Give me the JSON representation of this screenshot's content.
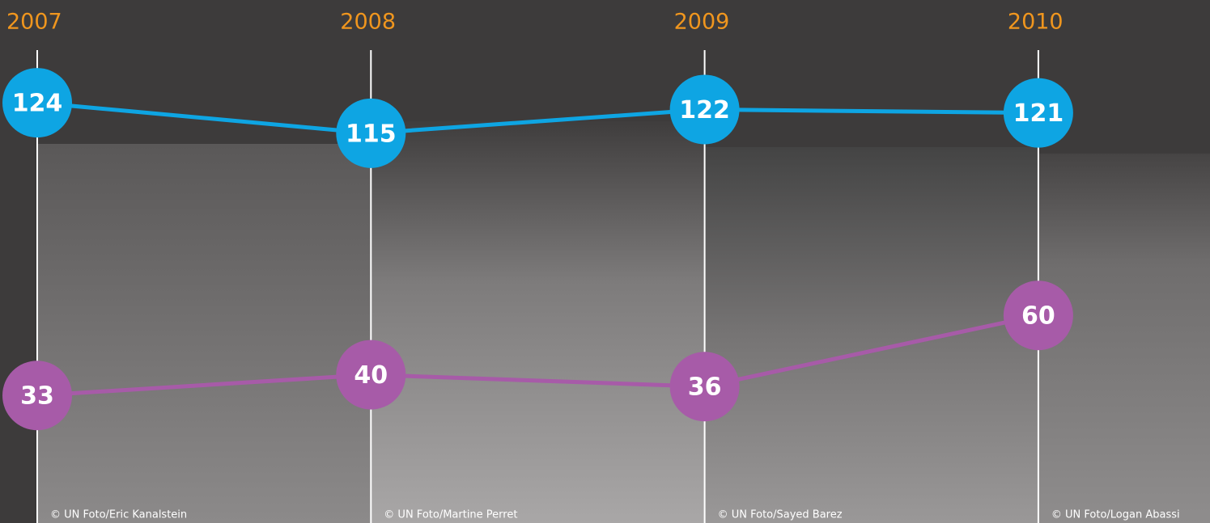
{
  "chart_data": {
    "type": "line",
    "categories": [
      "2007",
      "2008",
      "2009",
      "2010"
    ],
    "series": [
      {
        "color": "#0ea5e3",
        "values": [
          124,
          115,
          122,
          121
        ]
      },
      {
        "color": "#a75ba8",
        "values": [
          33,
          40,
          36,
          60
        ],
        "axis": "y2"
      }
    ],
    "ylim": [
      0,
      140
    ],
    "y2lim": [
      -10,
      150
    ],
    "photo_credits": [
      "© UN Foto/Eric Kanalstein",
      "© UN Foto/Martine Perret",
      "© UN Foto/Sayed Barez",
      "© UN Foto/Logan Abassi"
    ]
  }
}
